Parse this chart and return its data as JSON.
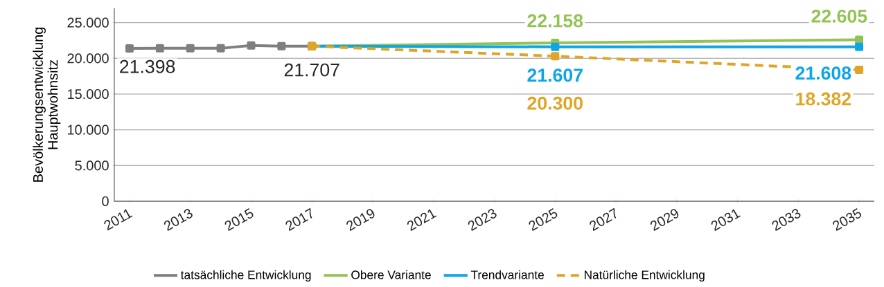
{
  "chart_data": {
    "type": "line",
    "ylabel": "Bevölkerungsentwicklung Hauptwohnsitz",
    "xlim": [
      2010.5,
      2035.5
    ],
    "xticks": [
      2011,
      2013,
      2015,
      2017,
      2019,
      2021,
      2023,
      2025,
      2027,
      2029,
      2031,
      2033,
      2035
    ],
    "ylim": [
      0,
      27000
    ],
    "yticks": [
      {
        "value": 0,
        "label": "0"
      },
      {
        "value": 5000,
        "label": "5.000"
      },
      {
        "value": 10000,
        "label": "10.000"
      },
      {
        "value": 15000,
        "label": "15.000"
      },
      {
        "value": 20000,
        "label": "20.000"
      },
      {
        "value": 25000,
        "label": "25.000"
      }
    ],
    "grid": "y",
    "legend": "bottom",
    "marker": "square",
    "series": [
      {
        "name": "tatsächliche Entwicklung",
        "color": "#7f7f7f",
        "line_style": "solid",
        "x": [
          2011,
          2012,
          2013,
          2014,
          2015,
          2016,
          2017
        ],
        "values": [
          21398,
          21400,
          21400,
          21400,
          21800,
          21700,
          21707
        ],
        "value_labels": [
          "21.398",
          null,
          null,
          null,
          null,
          null,
          "21.707"
        ]
      },
      {
        "name": "Obere Variante",
        "color": "#92c353",
        "line_style": "solid",
        "x": [
          2017,
          2025,
          2035
        ],
        "values": [
          21700,
          22158,
          22605
        ],
        "value_labels": [
          null,
          "22.158",
          "22.605"
        ]
      },
      {
        "name": "Trendvariante",
        "color": "#0ea5e8",
        "line_style": "solid",
        "x": [
          2017,
          2025,
          2035
        ],
        "values": [
          21700,
          21607,
          21608
        ],
        "value_labels": [
          null,
          "21.607",
          "21.608"
        ]
      },
      {
        "name": "Natürliche Entwicklung",
        "color": "#e0a526",
        "line_style": "dashed",
        "x": [
          2017,
          2025,
          2035
        ],
        "values": [
          21700,
          20300,
          18382
        ],
        "value_labels": [
          null,
          "20.300",
          "18.382"
        ]
      }
    ]
  }
}
